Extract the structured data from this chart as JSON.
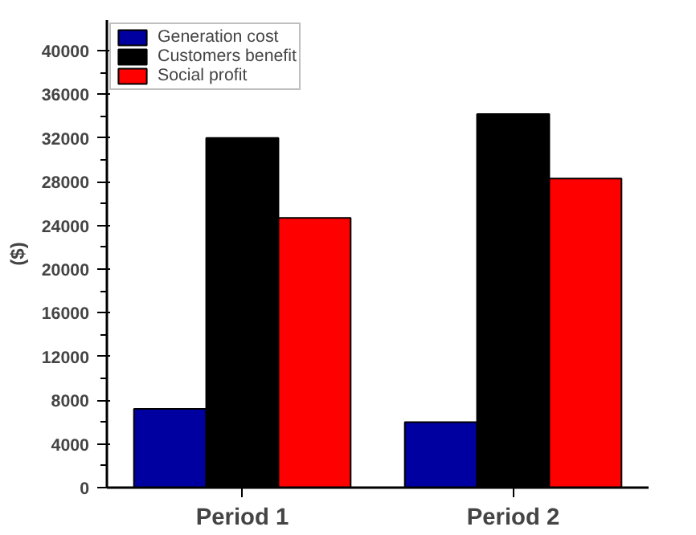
{
  "chart_data": {
    "type": "bar",
    "ylabel": "($)",
    "categories": [
      "Period 1",
      "Period 2"
    ],
    "series": [
      {
        "name": "Generation cost",
        "color": "#0000a0",
        "values": [
          7200,
          6000
        ]
      },
      {
        "name": "Customers benefit",
        "color": "#000000",
        "values": [
          32000,
          34200
        ]
      },
      {
        "name": "Social profit",
        "color": "#ff0000",
        "values": [
          24700,
          28300
        ]
      }
    ],
    "ylim": [
      0,
      42800
    ],
    "yticks": [
      0,
      4000,
      8000,
      12000,
      16000,
      20000,
      24000,
      28000,
      32000,
      36000,
      40000
    ],
    "legend": "top left",
    "grid": false
  }
}
